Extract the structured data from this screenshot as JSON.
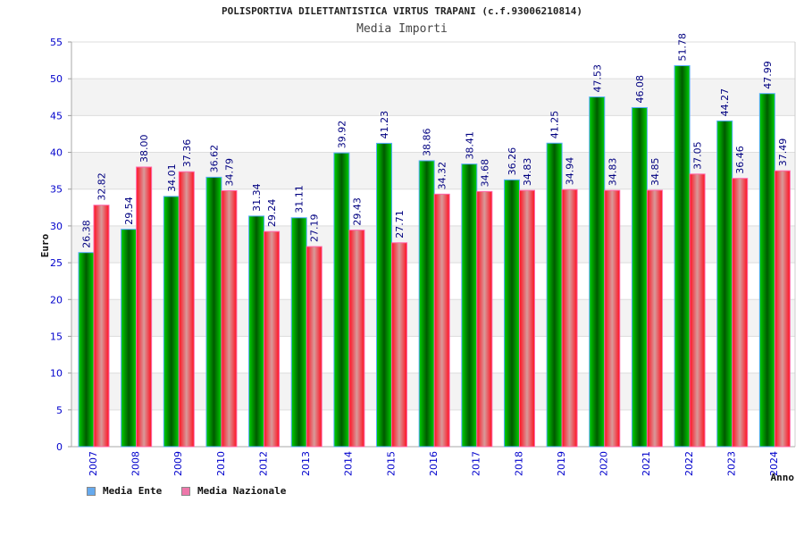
{
  "chart_data": {
    "type": "bar",
    "title": "POLISPORTIVA DILETTANTISTICA VIRTUS TRAPANI (c.f.93006210814)",
    "subtitle": "Media Importi",
    "xlabel": "Anno",
    "ylabel": "Euro",
    "ylim": [
      0,
      55
    ],
    "yticks": [
      0,
      5,
      10,
      15,
      20,
      25,
      30,
      35,
      40,
      45,
      50,
      55
    ],
    "grid": true,
    "legend_position": "bottom-left",
    "categories": [
      "2007",
      "2008",
      "2009",
      "2010",
      "2012",
      "2013",
      "2014",
      "2015",
      "2016",
      "2017",
      "2018",
      "2019",
      "2020",
      "2021",
      "2022",
      "2023",
      "2024"
    ],
    "series": [
      {
        "name": "Media Ente",
        "color": "#00b000",
        "legend_color": "#66aaee",
        "values": [
          26.38,
          29.54,
          34.01,
          36.62,
          31.34,
          31.11,
          39.92,
          41.23,
          38.86,
          38.41,
          36.26,
          41.25,
          47.53,
          46.08,
          51.78,
          44.27,
          47.99
        ]
      },
      {
        "name": "Media Nazionale",
        "color": "#ee2233",
        "legend_color": "#ee77aa",
        "values": [
          32.82,
          38.0,
          37.36,
          34.79,
          29.24,
          27.19,
          29.43,
          27.71,
          34.32,
          34.68,
          34.83,
          34.94,
          34.83,
          34.85,
          37.05,
          36.46,
          37.49
        ]
      }
    ]
  }
}
